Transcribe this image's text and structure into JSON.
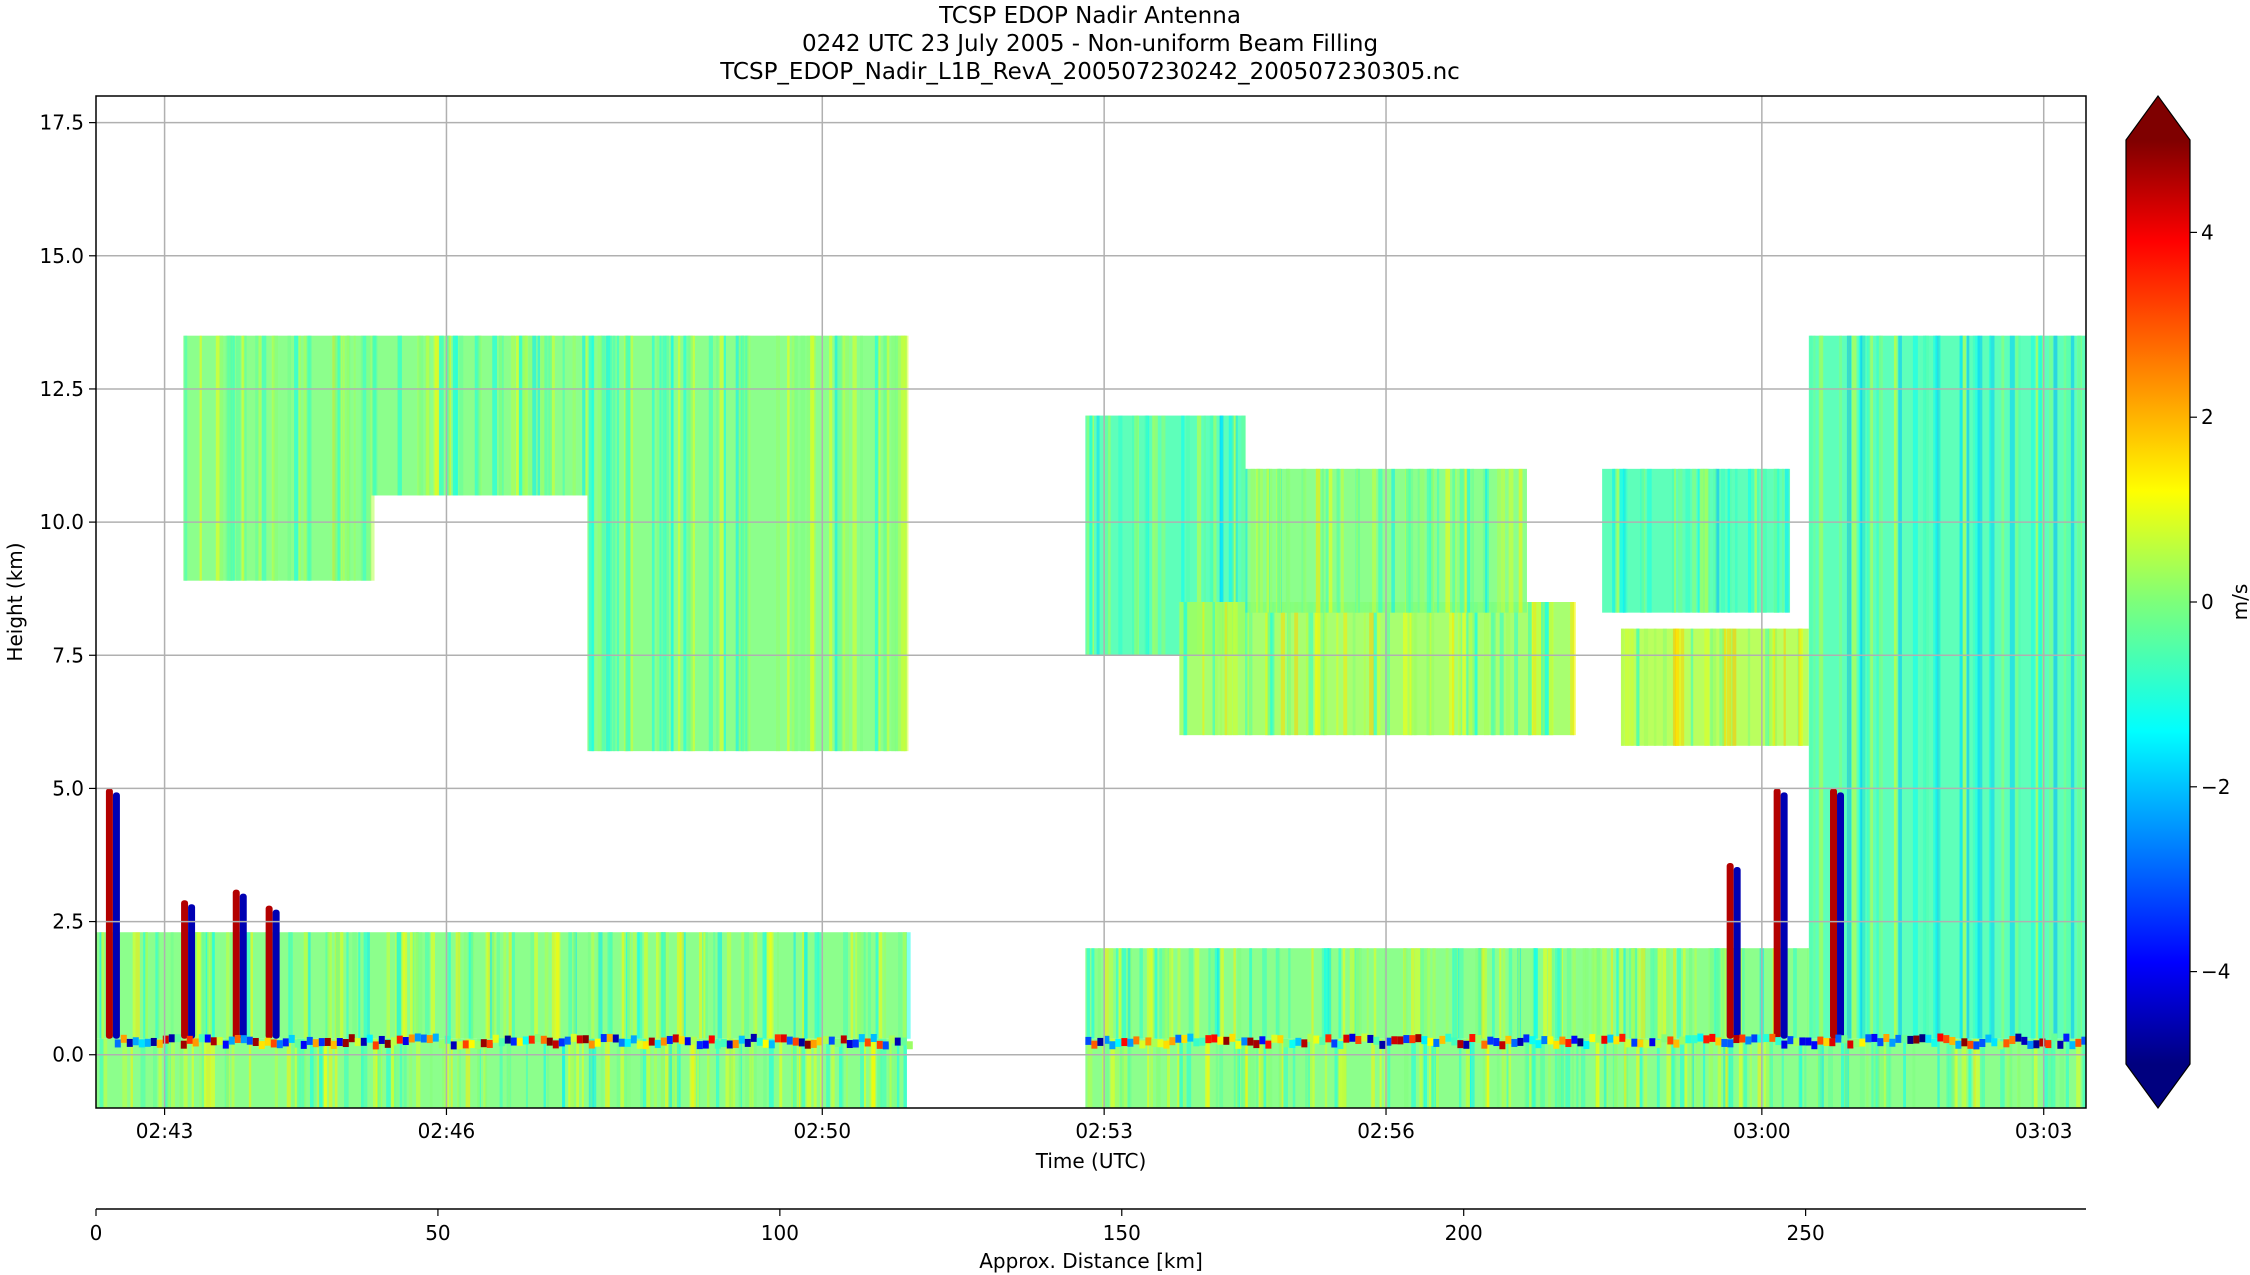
{
  "chart_data": {
    "type": "heatmap",
    "title": "TCSP EDOP Nadir Antenna",
    "subtitle": "0242 UTC 23 July 2005 - Non-uniform Beam Filling",
    "filename": "TCSP_EDOP_Nadir_L1B_RevA_200507230242_200507230305.nc",
    "xlabel": "Time (UTC)",
    "ylabel": "Height (km)",
    "x2label": "Approx. Distance [km]",
    "colorbar_label": "m/s",
    "colormap": "jet",
    "clim": [
      -5,
      5
    ],
    "grid": true,
    "ylim": [
      -1,
      18
    ],
    "y_ticks": [
      0.0,
      2.5,
      5.0,
      7.5,
      10.0,
      12.5,
      15.0,
      17.5
    ],
    "y_tick_labels": [
      "0.0",
      "2.5",
      "5.0",
      "7.5",
      "10.0",
      "12.5",
      "15.0",
      "17.5"
    ],
    "x_tick_labels": [
      "02:43",
      "02:46",
      "02:50",
      "02:53",
      "02:56",
      "03:00",
      "03:03"
    ],
    "x_ticks_min": [
      3,
      6,
      10,
      13,
      16,
      20,
      23
    ],
    "xlim_min": [
      2.27,
      23.45
    ],
    "x2_ticks": [
      0,
      50,
      100,
      150,
      200,
      250
    ],
    "x2_tick_labels": [
      "0",
      "50",
      "100",
      "150",
      "200",
      "250"
    ],
    "x2lim": [
      0,
      291
    ],
    "colorbar_ticks": [
      -4,
      -2,
      0,
      2,
      4
    ],
    "colorbar_tick_labels": [
      "−4",
      "−2",
      "0",
      "2",
      "4"
    ],
    "data_gap_min": [
      10.9,
      12.8
    ],
    "clouds": [
      {
        "t": [
          3.2,
          5.2
        ],
        "z": [
          8.9,
          13.5
        ],
        "v": 0
      },
      {
        "t": [
          5.2,
          7.5
        ],
        "z": [
          10.5,
          13.5
        ],
        "v": 0
      },
      {
        "t": [
          7.5,
          10.9
        ],
        "z": [
          5.7,
          13.5
        ],
        "v": 0
      },
      {
        "t": [
          12.8,
          14.5
        ],
        "z": [
          7.5,
          12.0
        ],
        "v": -0.5
      },
      {
        "t": [
          13.8,
          18.0
        ],
        "z": [
          6.0,
          8.5
        ],
        "v": 0.3
      },
      {
        "t": [
          14.5,
          17.5
        ],
        "z": [
          8.3,
          11.0
        ],
        "v": 0
      },
      {
        "t": [
          18.3,
          20.3
        ],
        "z": [
          8.3,
          11.0
        ],
        "v": -0.5
      },
      {
        "t": [
          18.5,
          20.5
        ],
        "z": [
          5.8,
          8.0
        ],
        "v": 0.5
      },
      {
        "t": [
          20.5,
          23.45
        ],
        "z": [
          0.3,
          13.5
        ],
        "v": -0.5
      },
      {
        "t": [
          2.27,
          10.9
        ],
        "z": [
          0.3,
          2.3
        ],
        "v": 0
      },
      {
        "t": [
          12.8,
          20.5
        ],
        "z": [
          0.3,
          2.0
        ],
        "v": 0
      },
      {
        "t": [
          2.27,
          10.9
        ],
        "z": [
          -1,
          0.3
        ],
        "v": 0
      },
      {
        "t": [
          12.8,
          23.45
        ],
        "z": [
          -1,
          0.3
        ],
        "v": 0
      }
    ],
    "convective_cells": [
      {
        "t": 2.45,
        "ztop": 5.0
      },
      {
        "t": 3.25,
        "ztop": 2.9
      },
      {
        "t": 3.8,
        "ztop": 3.1
      },
      {
        "t": 4.15,
        "ztop": 2.8
      },
      {
        "t": 19.7,
        "ztop": 3.6
      },
      {
        "t": 20.2,
        "ztop": 5.0
      },
      {
        "t": 20.8,
        "ztop": 5.0
      }
    ]
  }
}
